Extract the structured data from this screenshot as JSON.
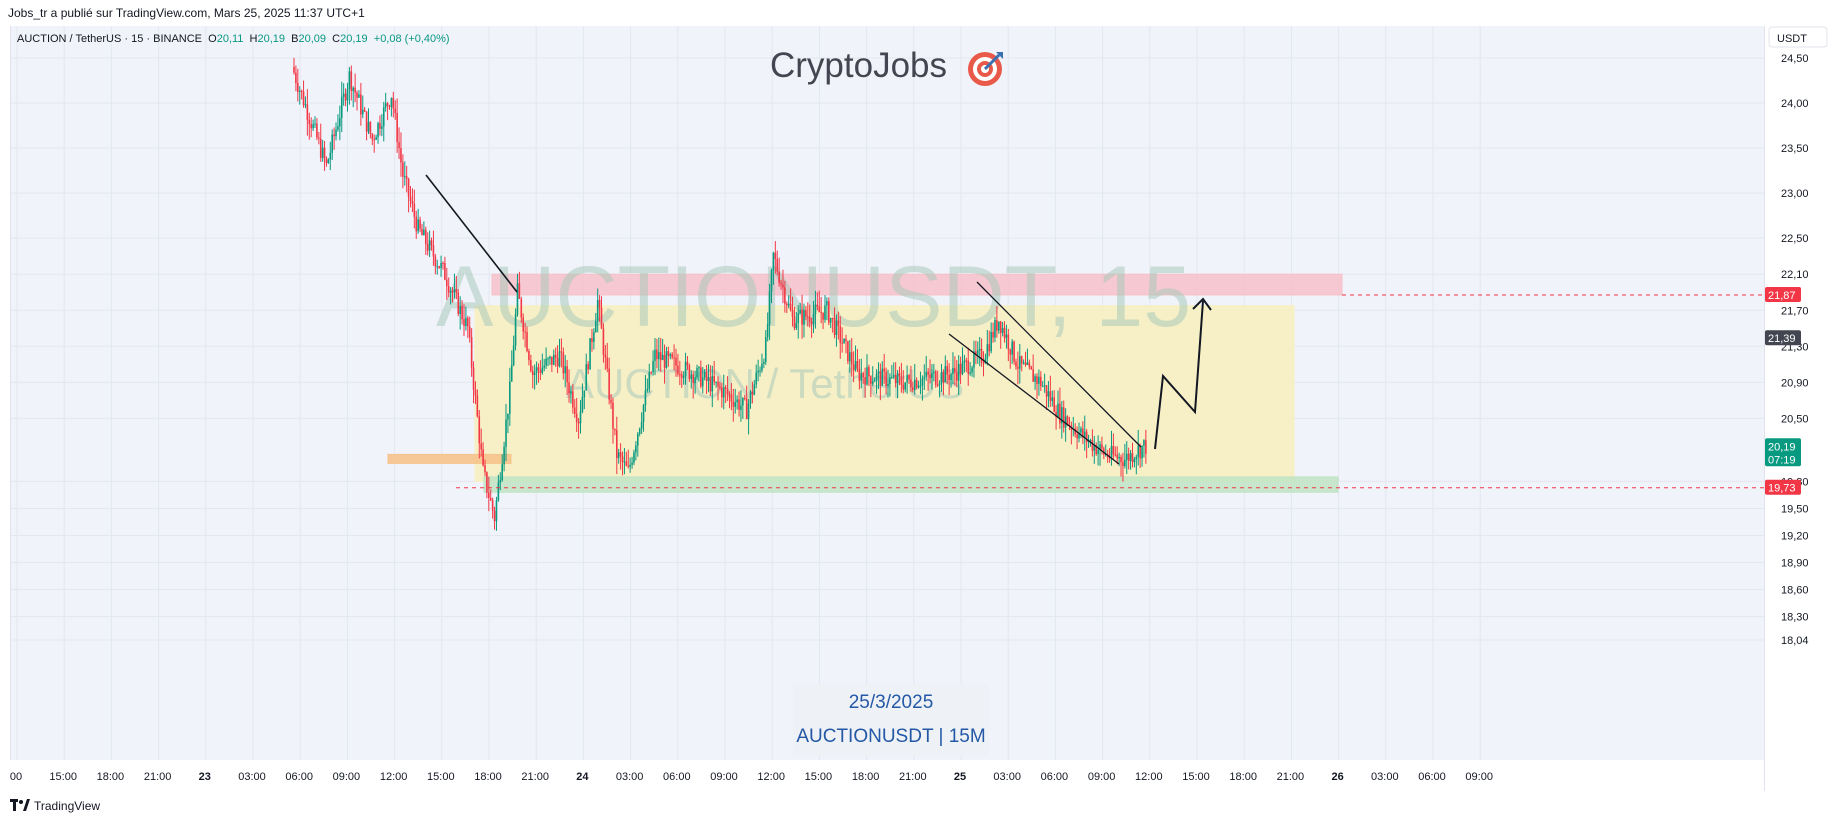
{
  "header": {
    "publisher_line": "Jobs_tr a publié sur TradingView.com, Mars 25, 2025 11:37 UTC+1"
  },
  "legend": {
    "symbol": "AUCTION / TetherUS · 15 · BINANCE",
    "o_label": "O",
    "o_value": "20,11",
    "h_label": "H",
    "h_value": "20,19",
    "b_label": "B",
    "b_value": "20,09",
    "c_label": "C",
    "c_value": "20,19",
    "change": "+0,08 (+0,40%)"
  },
  "logo": {
    "text": "CryptoJobs",
    "icon": "target-dart-icon"
  },
  "watermark": {
    "main": "AUCTIONUSDT, 15",
    "sub": "AUCTION / TetherUS"
  },
  "stamp": {
    "date": "25/3/2025",
    "pair": "AUCTIONUSDT | 15M"
  },
  "footer": {
    "brand": "TradingView"
  },
  "colors": {
    "up": "#089981",
    "down": "#f23645",
    "resistance_zone": "#f7c0c9",
    "range_zone": "#f7f0c0",
    "support_zone": "#bfe3c3",
    "old_zone": "#f6c38c",
    "watermark": "#a9c9b9"
  },
  "chart_data": {
    "type": "candlestick",
    "currency_label": "USDT",
    "y_ticks": [
      "24,50",
      "24,00",
      "23,50",
      "23,00",
      "22,50",
      "22,10",
      "21,70",
      "21,30",
      "20,90",
      "20,50",
      "19,80",
      "19,50",
      "19,20",
      "18,90",
      "18,60",
      "18,30",
      "18,04"
    ],
    "x_ticks": [
      "00",
      "15:00",
      "18:00",
      "21:00",
      "23",
      "03:00",
      "06:00",
      "09:00",
      "12:00",
      "15:00",
      "18:00",
      "21:00",
      "24",
      "03:00",
      "06:00",
      "09:00",
      "12:00",
      "15:00",
      "18:00",
      "21:00",
      "25",
      "03:00",
      "06:00",
      "09:00",
      "12:00",
      "15:00",
      "18:00",
      "21:00",
      "26",
      "03:00",
      "06:00",
      "09:00"
    ],
    "ylim": [
      17.9,
      24.8
    ],
    "price_labels": [
      {
        "name": "resistance",
        "value": 21.87,
        "text": "21,87",
        "color": "#f23645"
      },
      {
        "name": "crosshair",
        "value": 21.39,
        "text": "21,39",
        "color": "#434651"
      },
      {
        "name": "last-price",
        "value": 20.19,
        "text": "20,19",
        "countdown": "07:19",
        "color": "#089981"
      },
      {
        "name": "support",
        "value": 19.73,
        "text": "19,73",
        "color": "#f23645"
      }
    ],
    "zones": [
      {
        "name": "resistance-zone",
        "from_value": 21.87,
        "to_value": 22.1
      },
      {
        "name": "range-zone",
        "from_value": 19.8,
        "to_value": 21.75
      },
      {
        "name": "support-zone",
        "from_value": 19.68,
        "to_value": 19.85
      },
      {
        "name": "old-zone",
        "from_value": 20.0,
        "to_value": 20.1
      }
    ],
    "path_summary": {
      "start_high": 24.6,
      "drop_low": 19.25,
      "spike_high": 22.45,
      "range_top": 21.8,
      "range_bottom": 19.73,
      "last_close": 20.19,
      "projected_target": 21.6
    }
  }
}
